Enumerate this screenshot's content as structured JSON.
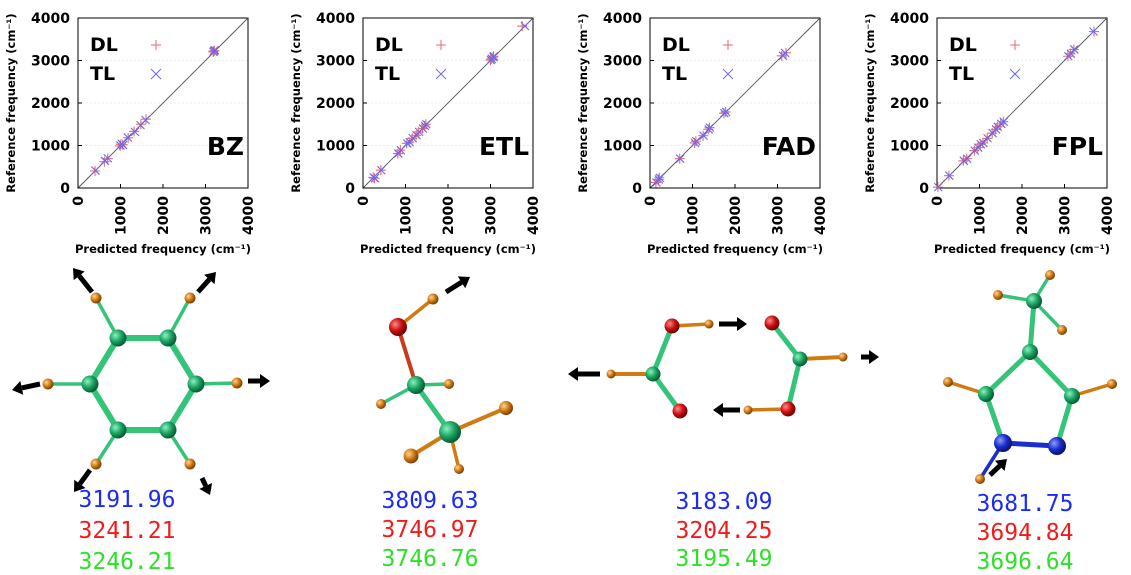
{
  "colors": {
    "dl": "#f06a6a",
    "tl": "#6a6af0",
    "diag": "#555555",
    "carbon": "#19a462",
    "hydrogen": "#d07a12",
    "oxygen": "#cc1010",
    "nitrogen": "#1a2ecc",
    "bond_c": "#33c47a",
    "arrow": "#000000",
    "val_dl_color": "#f01c1c",
    "val_tl_color": "#1c2cf0",
    "val_ref_color": "#2fe02a"
  },
  "chart_data": [
    {
      "type": "scatter",
      "name_label": "BZ",
      "xlabel": "Predicted frequency (cm⁻¹)",
      "ylabel": "Reference frequency (cm⁻¹)",
      "xlim": [
        0,
        4000
      ],
      "ylim": [
        0,
        4000
      ],
      "xticks": [
        "0",
        "1000",
        "2000",
        "3000",
        "4000"
      ],
      "yticks": [
        "0",
        "1000",
        "2000",
        "3000",
        "4000"
      ],
      "legend": [
        "DL",
        "TL"
      ],
      "diagonal": true,
      "series": [
        {
          "name": "DL",
          "marker": "+",
          "points": [
            [
              400,
              400
            ],
            [
              620,
              620
            ],
            [
              700,
              690
            ],
            [
              990,
              990
            ],
            [
              1010,
              1030
            ],
            [
              1050,
              1020
            ],
            [
              1180,
              1180
            ],
            [
              1320,
              1330
            ],
            [
              1480,
              1500
            ],
            [
              1600,
              1620
            ],
            [
              3180,
              3200
            ],
            [
              3190,
              3220
            ],
            [
              3210,
              3230
            ]
          ]
        },
        {
          "name": "TL",
          "marker": "x",
          "points": [
            [
              410,
              410
            ],
            [
              630,
              640
            ],
            [
              700,
              700
            ],
            [
              1000,
              1000
            ],
            [
              1030,
              1040
            ],
            [
              1060,
              1010
            ],
            [
              1170,
              1190
            ],
            [
              1340,
              1320
            ],
            [
              1470,
              1480
            ],
            [
              1590,
              1600
            ],
            [
              3190,
              3200
            ],
            [
              3200,
              3230
            ],
            [
              3220,
              3240
            ]
          ]
        }
      ]
    },
    {
      "type": "scatter",
      "name_label": "ETL",
      "xlabel": "Predicted frequency (cm⁻¹)",
      "ylabel": "Reference frequency (cm⁻¹)",
      "xlim": [
        0,
        4000
      ],
      "ylim": [
        0,
        4000
      ],
      "xticks": [
        "0",
        "1000",
        "2000",
        "3000",
        "4000"
      ],
      "yticks": [
        "0",
        "1000",
        "2000",
        "3000",
        "4000"
      ],
      "legend": [
        "DL",
        "TL"
      ],
      "diagonal": true,
      "series": [
        {
          "name": "DL",
          "marker": "+",
          "points": [
            [
              240,
              250
            ],
            [
              270,
              230
            ],
            [
              420,
              420
            ],
            [
              820,
              810
            ],
            [
              880,
              890
            ],
            [
              1030,
              1050
            ],
            [
              1090,
              1080
            ],
            [
              1160,
              1170
            ],
            [
              1250,
              1240
            ],
            [
              1310,
              1320
            ],
            [
              1400,
              1400
            ],
            [
              1450,
              1460
            ],
            [
              1480,
              1500
            ],
            [
              3000,
              3010
            ],
            [
              3020,
              3040
            ],
            [
              3060,
              3080
            ],
            [
              3070,
              3100
            ],
            [
              3746,
              3810
            ]
          ]
        },
        {
          "name": "TL",
          "marker": "x",
          "points": [
            [
              250,
              250
            ],
            [
              280,
              230
            ],
            [
              430,
              420
            ],
            [
              830,
              810
            ],
            [
              890,
              890
            ],
            [
              1040,
              1050
            ],
            [
              1100,
              1080
            ],
            [
              1170,
              1170
            ],
            [
              1260,
              1240
            ],
            [
              1320,
              1320
            ],
            [
              1410,
              1400
            ],
            [
              1460,
              1460
            ],
            [
              1490,
              1500
            ],
            [
              3010,
              3010
            ],
            [
              3030,
              3040
            ],
            [
              3070,
              3080
            ],
            [
              3080,
              3100
            ],
            [
              3810,
              3810
            ]
          ]
        }
      ]
    },
    {
      "type": "scatter",
      "name_label": "FAD",
      "xlabel": "Predicted frequency (cm⁻¹)",
      "ylabel": "Reference frequency (cm⁻¹)",
      "xlim": [
        0,
        4000
      ],
      "ylim": [
        0,
        4000
      ],
      "xticks": [
        "0",
        "1000",
        "2000",
        "3000",
        "4000"
      ],
      "yticks": [
        "0",
        "1000",
        "2000",
        "3000",
        "4000"
      ],
      "legend": [
        "DL",
        "TL"
      ],
      "diagonal": true,
      "series": [
        {
          "name": "DL",
          "marker": "+",
          "points": [
            [
              140,
              130
            ],
            [
              200,
              200
            ],
            [
              220,
              240
            ],
            [
              700,
              690
            ],
            [
              1050,
              1060
            ],
            [
              1080,
              1100
            ],
            [
              1250,
              1230
            ],
            [
              1370,
              1380
            ],
            [
              1400,
              1420
            ],
            [
              1740,
              1760
            ],
            [
              1780,
              1790
            ],
            [
              3100,
              3110
            ],
            [
              3200,
              3180
            ]
          ]
        },
        {
          "name": "TL",
          "marker": "x",
          "points": [
            [
              150,
              130
            ],
            [
              210,
              200
            ],
            [
              230,
              240
            ],
            [
              710,
              690
            ],
            [
              1060,
              1060
            ],
            [
              1090,
              1100
            ],
            [
              1260,
              1230
            ],
            [
              1380,
              1380
            ],
            [
              1410,
              1420
            ],
            [
              1750,
              1760
            ],
            [
              1790,
              1790
            ],
            [
              3130,
              3110
            ],
            [
              3180,
              3180
            ]
          ]
        }
      ]
    },
    {
      "type": "scatter",
      "name_label": "FPL",
      "xlabel": "Predicted frequency (cm⁻¹)",
      "ylabel": "Reference frequency (cm⁻¹)",
      "xlim": [
        0,
        4000
      ],
      "ylim": [
        0,
        4000
      ],
      "xticks": [
        "0",
        "1000",
        "2000",
        "3000",
        "4000"
      ],
      "yticks": [
        "0",
        "1000",
        "2000",
        "3000",
        "4000"
      ],
      "legend": [
        "DL",
        "TL"
      ],
      "diagonal": true,
      "series": [
        {
          "name": "DL",
          "marker": "+",
          "points": [
            [
              20,
              20
            ],
            [
              280,
              290
            ],
            [
              620,
              640
            ],
            [
              700,
              690
            ],
            [
              880,
              880
            ],
            [
              960,
              950
            ],
            [
              1020,
              1030
            ],
            [
              1080,
              1060
            ],
            [
              1180,
              1170
            ],
            [
              1300,
              1290
            ],
            [
              1380,
              1380
            ],
            [
              1420,
              1440
            ],
            [
              1500,
              1510
            ],
            [
              1560,
              1560
            ],
            [
              3080,
              3100
            ],
            [
              3140,
              3160
            ],
            [
              3220,
              3260
            ],
            [
              3694,
              3682
            ]
          ]
        },
        {
          "name": "TL",
          "marker": "x",
          "points": [
            [
              30,
              20
            ],
            [
              290,
              290
            ],
            [
              630,
              640
            ],
            [
              710,
              690
            ],
            [
              890,
              880
            ],
            [
              970,
              950
            ],
            [
              1030,
              1030
            ],
            [
              1090,
              1060
            ],
            [
              1190,
              1170
            ],
            [
              1310,
              1290
            ],
            [
              1390,
              1380
            ],
            [
              1430,
              1440
            ],
            [
              1510,
              1510
            ],
            [
              1570,
              1560
            ],
            [
              3090,
              3100
            ],
            [
              3150,
              3160
            ],
            [
              3230,
              3260
            ],
            [
              3682,
              3682
            ]
          ]
        }
      ]
    }
  ],
  "values": [
    {
      "blue": "3191.96",
      "red": "3241.21",
      "green": "3246.21"
    },
    {
      "blue": "3809.63",
      "red": "3746.97",
      "green": "3746.76"
    },
    {
      "blue": "3183.09",
      "red": "3204.25",
      "green": "3195.49"
    },
    {
      "blue": "3681.75",
      "red": "3694.84",
      "green": "3696.64"
    }
  ]
}
